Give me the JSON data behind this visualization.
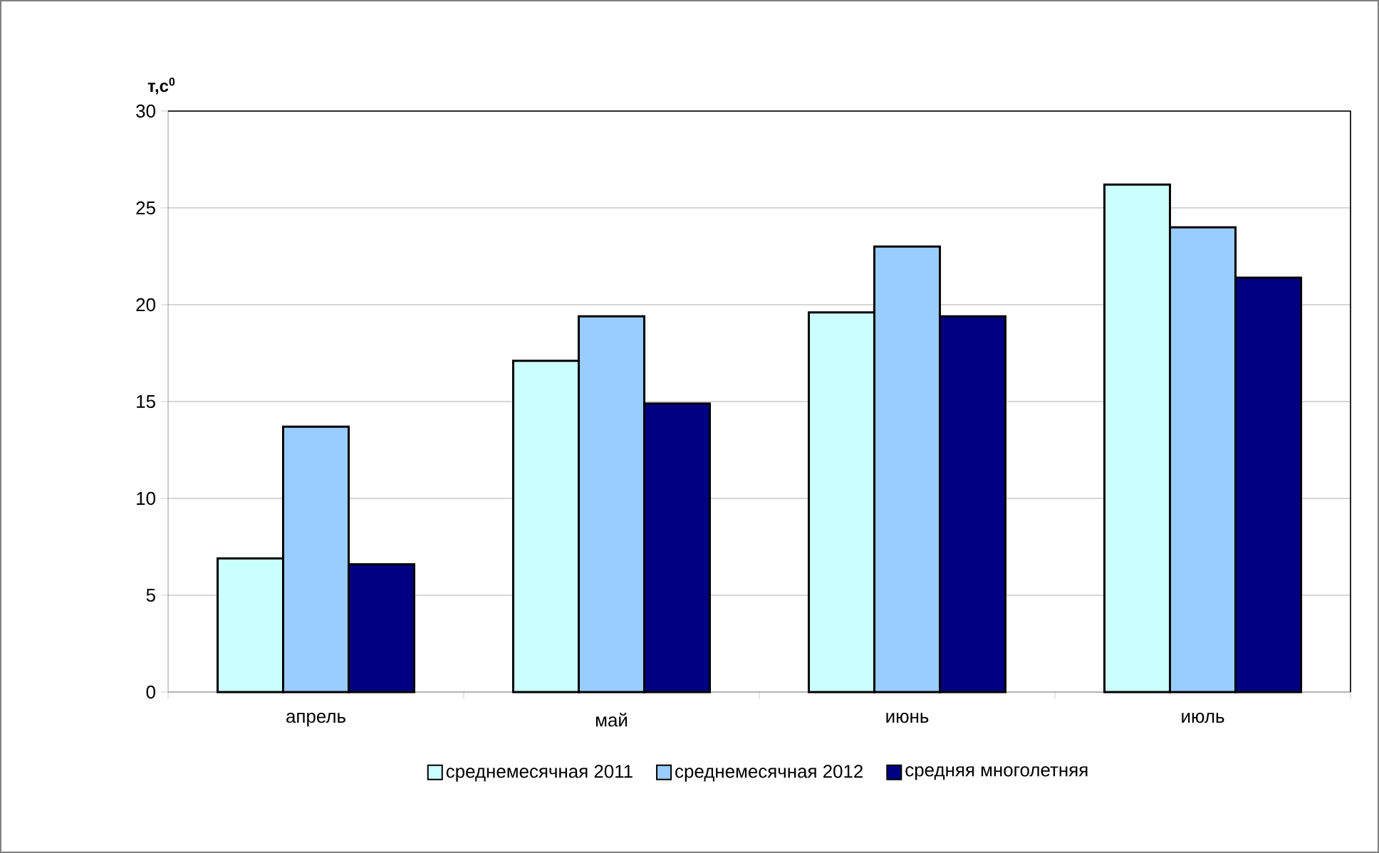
{
  "chart_data": {
    "type": "bar",
    "ylabel": "**т,с$^{0}$**",
    "categories": [
      "апрель",
      "май",
      "июнь",
      "июль"
    ],
    "series": [
      {
        "name": "среднемесячная 2011",
        "color": "#ccffff",
        "values": [
          6.9,
          17.1,
          19.6,
          26.2
        ]
      },
      {
        "name": "среднемесячная 2012",
        "color": "#99ccff",
        "values": [
          13.7,
          19.4,
          23.0,
          24.0
        ]
      },
      {
        "name": "средняя многолетняя",
        "color": "#000080",
        "values": [
          6.6,
          14.9,
          19.4,
          21.4
        ]
      }
    ],
    "ylim": [
      0,
      30
    ],
    "yticks": [
      0,
      5,
      10,
      15,
      20,
      25,
      30
    ],
    "grid": "y",
    "legend": "bottom"
  }
}
